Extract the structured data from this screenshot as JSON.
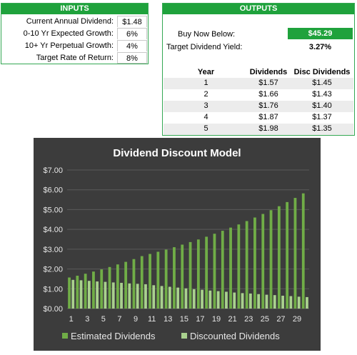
{
  "inputs": {
    "header": "INPUTS",
    "rows": [
      {
        "label": "Current Annual Dividend:",
        "value": "$1.48"
      },
      {
        "label": "0-10 Yr Expected Growth:",
        "value": "6%"
      },
      {
        "label": "10+ Yr Perpetual Growth:",
        "value": "4%"
      },
      {
        "label": "Target Rate of Return:",
        "value": "8%"
      }
    ]
  },
  "outputs": {
    "header": "OUTPUTS",
    "buy_label": "Buy Now Below:",
    "buy_value": "$45.29",
    "yield_label": "Target Dividend Yield:",
    "yield_value": "3.27%",
    "table_headers": [
      "Year",
      "Dividends",
      "Disc Dividends"
    ],
    "table_rows": [
      [
        "1",
        "$1.57",
        "$1.45"
      ],
      [
        "2",
        "$1.66",
        "$1.43"
      ],
      [
        "3",
        "$1.76",
        "$1.40"
      ],
      [
        "4",
        "$1.87",
        "$1.37"
      ],
      [
        "5",
        "$1.98",
        "$1.35"
      ]
    ]
  },
  "colors": {
    "accent": "#1fa23c",
    "chart_bg": "#3c3c3c",
    "series_estimated": "#70ad47",
    "series_discounted": "#a9d18e"
  },
  "chart_data": {
    "type": "bar",
    "title": "Dividend Discount Model",
    "xlabel": "",
    "ylabel": "",
    "categories": [
      "1",
      "2",
      "3",
      "4",
      "5",
      "6",
      "7",
      "8",
      "9",
      "10",
      "11",
      "12",
      "13",
      "14",
      "15",
      "16",
      "17",
      "18",
      "19",
      "20",
      "21",
      "22",
      "23",
      "24",
      "25",
      "26",
      "27",
      "28",
      "29",
      "30"
    ],
    "x_tick_labels": [
      "1",
      "3",
      "5",
      "7",
      "9",
      "11",
      "13",
      "15",
      "17",
      "19",
      "21",
      "23",
      "25",
      "27",
      "29"
    ],
    "y_tick_labels": [
      "$0.00",
      "$1.00",
      "$2.00",
      "$3.00",
      "$4.00",
      "$5.00",
      "$6.00",
      "$7.00"
    ],
    "ylim": [
      0,
      7
    ],
    "grid": true,
    "legend_position": "bottom",
    "series": [
      {
        "name": "Estimated Dividends",
        "values": [
          1.57,
          1.66,
          1.76,
          1.87,
          1.98,
          2.1,
          2.23,
          2.36,
          2.5,
          2.65,
          2.76,
          2.87,
          2.98,
          3.1,
          3.23,
          3.36,
          3.49,
          3.63,
          3.78,
          3.93,
          4.09,
          4.25,
          4.42,
          4.6,
          4.78,
          4.97,
          5.17,
          5.38,
          5.59,
          5.82
        ]
      },
      {
        "name": "Discounted Dividends",
        "values": [
          1.45,
          1.43,
          1.4,
          1.37,
          1.35,
          1.32,
          1.3,
          1.27,
          1.25,
          1.23,
          1.18,
          1.14,
          1.1,
          1.06,
          1.02,
          0.98,
          0.95,
          0.91,
          0.88,
          0.85,
          0.81,
          0.78,
          0.76,
          0.73,
          0.7,
          0.68,
          0.65,
          0.63,
          0.6,
          0.58
        ]
      }
    ]
  }
}
